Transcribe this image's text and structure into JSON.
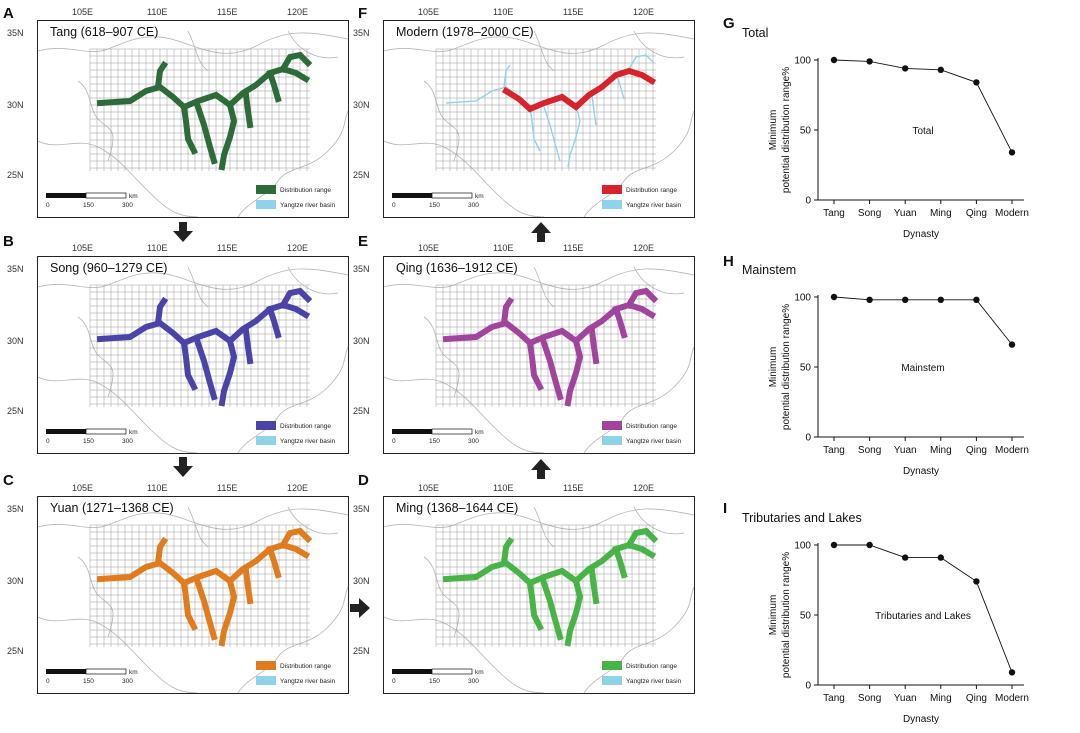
{
  "figure_panels": {
    "A": "A",
    "B": "B",
    "C": "C",
    "D": "D",
    "E": "E",
    "F": "F",
    "G": "G",
    "H": "H",
    "I": "I"
  },
  "maps": [
    {
      "id": "A",
      "title": "Tang (618–907 CE)",
      "color": "#2e6b3a",
      "legend_range": "Distribution range",
      "legend_basin": "Yangtze river basin"
    },
    {
      "id": "B",
      "title": "Song (960–1279 CE)",
      "color": "#4b44a6",
      "legend_range": "Distribution range",
      "legend_basin": "Yangtze river basin"
    },
    {
      "id": "C",
      "title": "Yuan (1271–1368 CE)",
      "color": "#e07c1e",
      "legend_range": "Distribution range",
      "legend_basin": "Yangtze river basin"
    },
    {
      "id": "D",
      "title": "Ming (1368–1644 CE)",
      "color": "#48b447",
      "legend_range": "Distribution range",
      "legend_basin": "Yangtze river basin"
    },
    {
      "id": "E",
      "title": "Qing (1636–1912 CE)",
      "color": "#a0449c",
      "legend_range": "Distribution range",
      "legend_basin": "Yangtze river basin"
    },
    {
      "id": "F",
      "title": "Modern (1978–2000 CE)",
      "color": "#d7232b",
      "legend_range": "Distribution range",
      "legend_basin": "Yangtze river basin"
    }
  ],
  "map_axes": {
    "lon_ticks": [
      "105E",
      "110E",
      "115E",
      "120E"
    ],
    "lat_ticks": [
      "35N",
      "30N",
      "25N"
    ],
    "scale_labels": [
      "0",
      "150",
      "300"
    ],
    "scale_unit": "km"
  },
  "colors": {
    "basin": "#8fd3ea",
    "grid": "#9a9a9a",
    "border": "#b5b5b5"
  },
  "chart_data": [
    {
      "id": "G",
      "type": "line",
      "title": "Total",
      "inner_label": "Total",
      "categories": [
        "Tang",
        "Song",
        "Yuan",
        "Ming",
        "Qing",
        "Modern"
      ],
      "values": [
        100,
        99,
        94,
        93,
        84,
        34
      ],
      "xlabel": "Dynasty",
      "ylabel_line1": "Minimum",
      "ylabel_line2": "potential distribution range%",
      "ylim": [
        0,
        100
      ],
      "yticks": [
        "0",
        "50",
        "100"
      ]
    },
    {
      "id": "H",
      "type": "line",
      "title": "Mainstem",
      "inner_label": "Mainstem",
      "categories": [
        "Tang",
        "Song",
        "Yuan",
        "Ming",
        "Qing",
        "Modern"
      ],
      "values": [
        100,
        98,
        98,
        98,
        98,
        66
      ],
      "xlabel": "Dynasty",
      "ylabel_line1": "Minimum",
      "ylabel_line2": "potential distribution range%",
      "ylim": [
        0,
        100
      ],
      "yticks": [
        "0",
        "50",
        "100"
      ]
    },
    {
      "id": "I",
      "type": "line",
      "title": "Tributaries and Lakes",
      "inner_label": "Tributaries and Lakes",
      "categories": [
        "Tang",
        "Song",
        "Yuan",
        "Ming",
        "Qing",
        "Modern"
      ],
      "values": [
        100,
        100,
        91,
        91,
        74,
        9
      ],
      "xlabel": "Dynasty",
      "ylabel_line1": "Minimum",
      "ylabel_line2": "potential distribution range%",
      "ylim": [
        0,
        100
      ],
      "yticks": [
        "0",
        "50",
        "100"
      ]
    }
  ]
}
